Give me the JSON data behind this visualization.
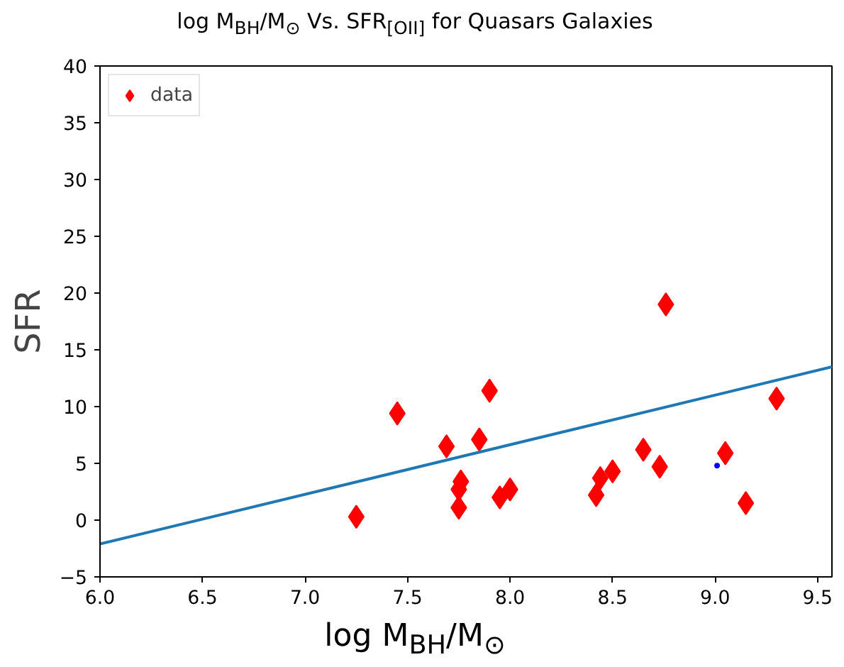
{
  "chart_data": {
    "type": "scatter",
    "title": "log M$_{BH}$/M$_{⊙}$ Vs. SFR$_{[OII]}$ for Quasars Galaxies",
    "xlabel": "log M$_{BH}$/M$_{⊙}$",
    "ylabel": "SFR",
    "xlim": [
      6.0,
      9.57
    ],
    "ylim": [
      -5,
      40
    ],
    "xticks": [
      {
        "value": 6,
        "label": "6.0"
      },
      6.5,
      {
        "value": 7,
        "label": "7.0"
      },
      7.5,
      {
        "value": 8,
        "label": "8.0"
      },
      8.5,
      {
        "value": 9,
        "label": "9.0"
      },
      9.5
    ],
    "yticks": [
      {
        "value": -5,
        "label": "−5"
      },
      0,
      5,
      10,
      15,
      20,
      25,
      30,
      35,
      40
    ],
    "grid": false,
    "legend": "top left",
    "marker": "diamond",
    "series": [
      {
        "name": "data",
        "color": "#ff0000",
        "x": [
          7.25,
          7.45,
          7.69,
          7.75,
          7.76,
          7.75,
          7.85,
          7.9,
          7.95,
          8.0,
          8.42,
          8.44,
          8.5,
          8.65,
          8.73,
          8.76,
          9.05,
          9.15,
          9.3
        ],
        "values": [
          0.3,
          9.4,
          6.5,
          2.7,
          3.4,
          1.1,
          7.1,
          11.4,
          2.0,
          2.7,
          2.2,
          3.7,
          4.3,
          6.2,
          4.7,
          19.0,
          5.9,
          1.5,
          10.7
        ]
      },
      {
        "type": "line",
        "marker": "none",
        "color": "#1f77b4",
        "x": [
          6.0,
          9.57
        ],
        "values": [
          -2.1,
          13.5
        ]
      },
      {
        "color": "#0000ff",
        "marker": "circle",
        "x": [
          9.01
        ],
        "values": [
          4.8
        ]
      }
    ]
  }
}
